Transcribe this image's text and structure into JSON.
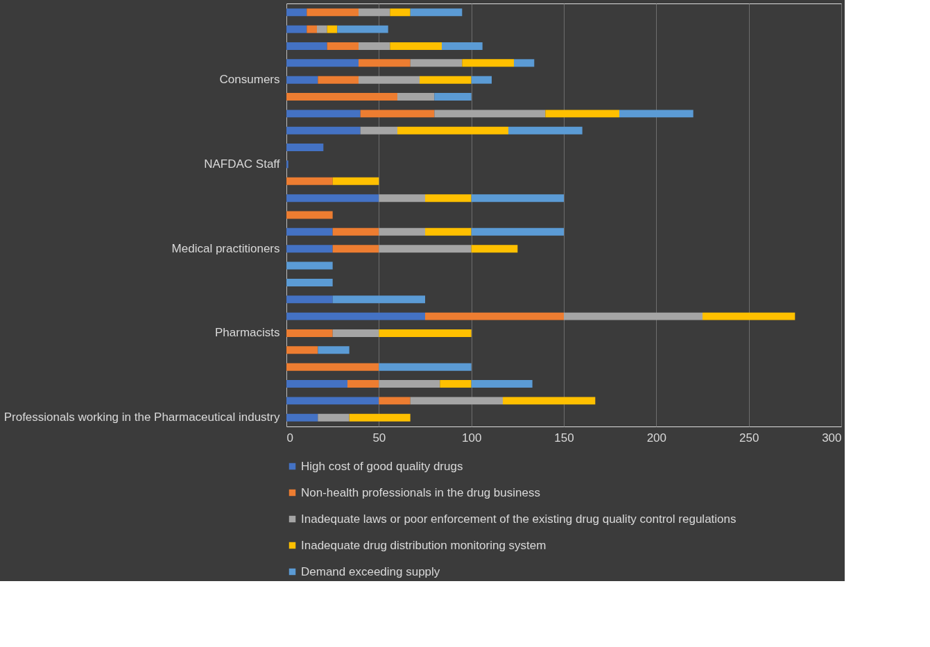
{
  "chart_data": {
    "type": "bar",
    "orientation": "horizontal",
    "stacked": true,
    "categories": [
      null,
      null,
      null,
      null,
      "Consumers",
      null,
      null,
      null,
      null,
      "NAFDAC Staff",
      null,
      null,
      null,
      null,
      "Medical practitioners",
      null,
      null,
      null,
      null,
      "Pharmacists",
      null,
      null,
      null,
      null,
      "Professionals working in the Pharmaceutical industry"
    ],
    "series": [
      {
        "name": "High cost of good quality drugs",
        "color": "#4472c4",
        "values": [
          11,
          11,
          22,
          39,
          17,
          null,
          40,
          40,
          20,
          1,
          null,
          50,
          null,
          25,
          25,
          null,
          null,
          25,
          75,
          null,
          null,
          null,
          33,
          50,
          17
        ]
      },
      {
        "name": "Non-health professionals in the drug business",
        "color": "#ed7d31",
        "values": [
          28,
          5.5,
          17,
          28,
          22,
          60,
          40,
          null,
          null,
          null,
          25,
          null,
          25,
          25,
          25,
          null,
          null,
          null,
          75,
          25,
          17,
          50,
          17,
          17,
          null
        ]
      },
      {
        "name": "Inadequate laws or poor enforcement of the existing drug quality control regulations",
        "color": "#a5a5a5",
        "values": [
          17,
          5.5,
          17,
          28,
          33,
          20,
          60,
          20,
          null,
          null,
          null,
          25,
          null,
          25,
          50,
          null,
          null,
          null,
          75,
          25,
          null,
          null,
          33,
          50,
          17
        ]
      },
      {
        "name": "Inadequate drug distribution monitoring system",
        "color": "#ffc000",
        "values": [
          11,
          5.5,
          28,
          28,
          28,
          null,
          40,
          60,
          null,
          null,
          25,
          25,
          null,
          25,
          25,
          null,
          null,
          null,
          50,
          50,
          null,
          null,
          17,
          50,
          33
        ]
      },
      {
        "name": "Demand exceeding supply",
        "color": "#5b9bd5",
        "values": [
          28,
          27.5,
          22,
          11,
          11,
          20,
          40,
          40,
          null,
          null,
          null,
          50,
          null,
          50,
          null,
          25,
          25,
          50,
          null,
          null,
          17,
          50,
          33,
          null,
          null
        ]
      }
    ],
    "xlim": [
      0,
      300
    ],
    "xticks": [
      0,
      50,
      100,
      150,
      200,
      250,
      300
    ],
    "grid": "x",
    "legend": "bottom"
  }
}
